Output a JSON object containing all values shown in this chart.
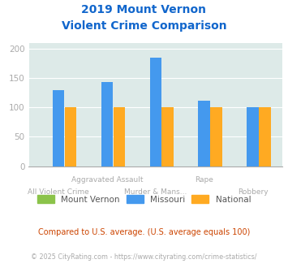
{
  "title_line1": "2019 Mount Vernon",
  "title_line2": "Violent Crime Comparison",
  "categories": [
    "All Violent Crime",
    "Aggravated Assault",
    "Murder & Mans...",
    "Rape",
    "Robbery"
  ],
  "mount_vernon": [
    0,
    0,
    0,
    0,
    0
  ],
  "missouri": [
    130,
    143,
    185,
    112,
    100
  ],
  "national": [
    100,
    100,
    100,
    100,
    100
  ],
  "colors": {
    "mount_vernon": "#8bc34a",
    "missouri": "#4499ee",
    "national": "#ffaa22"
  },
  "ylim": [
    0,
    210
  ],
  "yticks": [
    0,
    50,
    100,
    150,
    200
  ],
  "background_color": "#ddeae8",
  "title_color": "#1166cc",
  "tick_color": "#aaaaaa",
  "footnote1": "Compared to U.S. average. (U.S. average equals 100)",
  "footnote2": "© 2025 CityRating.com - https://www.cityrating.com/crime-statistics/",
  "footnote1_color": "#cc4400",
  "footnote2_color": "#aaaaaa"
}
